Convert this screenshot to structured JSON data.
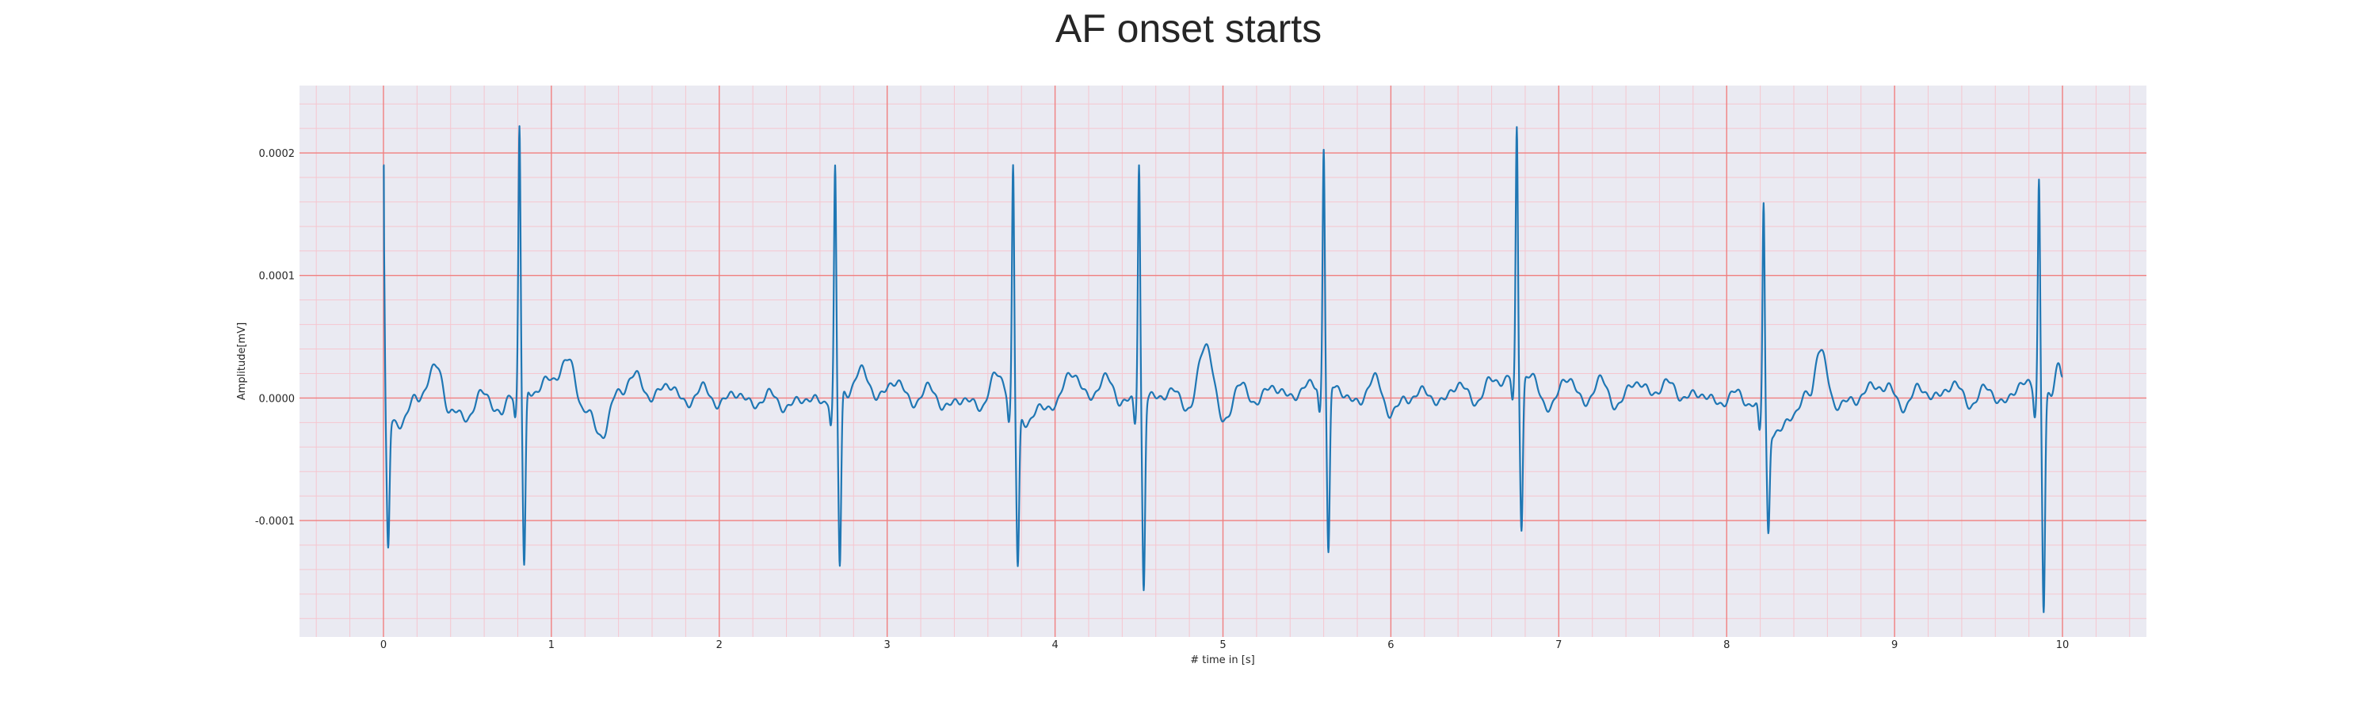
{
  "chart_data": {
    "type": "line",
    "title": "AF onset starts",
    "xlabel": "# time in [s]",
    "ylabel": "Amplitude[mV]",
    "xlim": [
      -0.5,
      10.5
    ],
    "ylim": [
      -0.000195,
      0.000255
    ],
    "xticks": [
      0,
      1,
      2,
      3,
      4,
      5,
      6,
      7,
      8,
      9,
      10
    ],
    "yticks": [
      -0.0001,
      0.0,
      0.0001,
      0.0002
    ],
    "ytick_labels": [
      "-0.0001",
      "0.0000",
      "0.0001",
      "0.0002"
    ],
    "grid": {
      "major": true,
      "minor": true,
      "major_color": "#f08080",
      "minor_color": "#f5c6cf"
    },
    "background": "#eaeaf2",
    "series": [
      {
        "color": "#1f77b4",
        "r_peaks": [
          {
            "t": 0.0,
            "r": 0.00019,
            "s": -0.000105
          },
          {
            "t": 0.81,
            "r": 0.000237,
            "s": -0.000145
          },
          {
            "t": 2.69,
            "r": 0.000205,
            "s": -0.000142
          },
          {
            "t": 3.75,
            "r": 0.000215,
            "s": -0.000125
          },
          {
            "t": 4.5,
            "r": 0.000215,
            "s": -0.000155
          },
          {
            "t": 5.6,
            "r": 0.000218,
            "s": -0.000138
          },
          {
            "t": 6.75,
            "r": 0.000223,
            "s": -0.000122
          },
          {
            "t": 8.22,
            "r": 0.000197,
            "s": -8.6e-05
          },
          {
            "t": 9.86,
            "r": 0.000196,
            "s": -0.000174
          }
        ],
        "baseline": [
          [
            0.02,
            -2e-05
          ],
          [
            0.1,
            -2e-05
          ],
          [
            0.2,
            0.0
          ],
          [
            0.32,
            2.5e-05
          ],
          [
            0.4,
            -1.2e-05
          ],
          [
            0.5,
            -1.5e-05
          ],
          [
            0.6,
            5e-06
          ],
          [
            0.7,
            -1.5e-05
          ],
          [
            0.76,
            5e-06
          ],
          [
            0.88,
            5e-06
          ],
          [
            1.0,
            1.5e-05
          ],
          [
            1.1,
            3e-05
          ],
          [
            1.2,
            -1e-05
          ],
          [
            1.3,
            -3e-05
          ],
          [
            1.4,
            5e-06
          ],
          [
            1.5,
            1.8e-05
          ],
          [
            1.6,
            0.0
          ],
          [
            1.7,
            1.2e-05
          ],
          [
            1.8,
            -5e-06
          ],
          [
            1.9,
            8e-06
          ],
          [
            2.0,
            -5e-06
          ],
          [
            2.1,
            5e-06
          ],
          [
            2.2,
            -6e-06
          ],
          [
            2.3,
            3e-06
          ],
          [
            2.4,
            -8e-06
          ],
          [
            2.5,
            0.0
          ],
          [
            2.6,
            -3e-06
          ],
          [
            2.76,
            5e-06
          ],
          [
            2.85,
            2.2e-05
          ],
          [
            2.95,
            0.0
          ],
          [
            3.05,
            1.5e-05
          ],
          [
            3.15,
            -4e-06
          ],
          [
            3.25,
            8e-06
          ],
          [
            3.35,
            -8e-06
          ],
          [
            3.45,
            0.0
          ],
          [
            3.55,
            -8e-06
          ],
          [
            3.65,
            1.8e-05
          ],
          [
            3.82,
            -2e-05
          ],
          [
            3.9,
            -1e-05
          ],
          [
            4.0,
            -5e-06
          ],
          [
            4.1,
            2.2e-05
          ],
          [
            4.2,
            0.0
          ],
          [
            4.3,
            1.6e-05
          ],
          [
            4.4,
            -3e-06
          ],
          [
            4.58,
            0.0
          ],
          [
            4.7,
            5e-06
          ],
          [
            4.8,
            -8e-06
          ],
          [
            4.9,
            4.5e-05
          ],
          [
            5.0,
            -2e-05
          ],
          [
            5.1,
            1e-05
          ],
          [
            5.2,
            -3e-06
          ],
          [
            5.3,
            1e-05
          ],
          [
            5.4,
            0.0
          ],
          [
            5.5,
            1e-05
          ],
          [
            5.68,
            8e-06
          ],
          [
            5.8,
            -5e-06
          ],
          [
            5.9,
            1.6e-05
          ],
          [
            6.0,
            -1.2e-05
          ],
          [
            6.1,
            0.0
          ],
          [
            6.2,
            5e-06
          ],
          [
            6.3,
            -4e-06
          ],
          [
            6.4,
            1.2e-05
          ],
          [
            6.5,
            -3e-06
          ],
          [
            6.6,
            1.4e-05
          ],
          [
            6.82,
            1.8e-05
          ],
          [
            6.95,
            -8e-06
          ],
          [
            7.05,
            1.8e-05
          ],
          [
            7.15,
            -4e-06
          ],
          [
            7.25,
            1.4e-05
          ],
          [
            7.35,
            -7e-06
          ],
          [
            7.45,
            1.4e-05
          ],
          [
            7.55,
            4e-06
          ],
          [
            7.65,
            1.2e-05
          ],
          [
            7.75,
            0.0
          ],
          [
            7.85,
            4e-06
          ],
          [
            7.95,
            -5e-06
          ],
          [
            8.05,
            4e-06
          ],
          [
            8.15,
            -5e-06
          ],
          [
            8.3,
            -3e-05
          ],
          [
            8.4,
            -1.2e-05
          ],
          [
            8.5,
            5e-06
          ],
          [
            8.55,
            4e-05
          ],
          [
            8.65,
            -5e-06
          ],
          [
            8.75,
            -3e-06
          ],
          [
            8.85,
            8e-06
          ],
          [
            8.95,
            1e-05
          ],
          [
            9.05,
            -7e-06
          ],
          [
            9.15,
            8e-06
          ],
          [
            9.25,
            0.0
          ],
          [
            9.35,
            1.2e-05
          ],
          [
            9.45,
            -5e-06
          ],
          [
            9.55,
            8e-06
          ],
          [
            9.65,
            -5e-06
          ],
          [
            9.75,
            1.2e-05
          ],
          [
            9.93,
            0.0
          ],
          [
            9.98,
            3e-05
          ],
          [
            10.0,
            2.2e-05
          ]
        ]
      }
    ]
  }
}
